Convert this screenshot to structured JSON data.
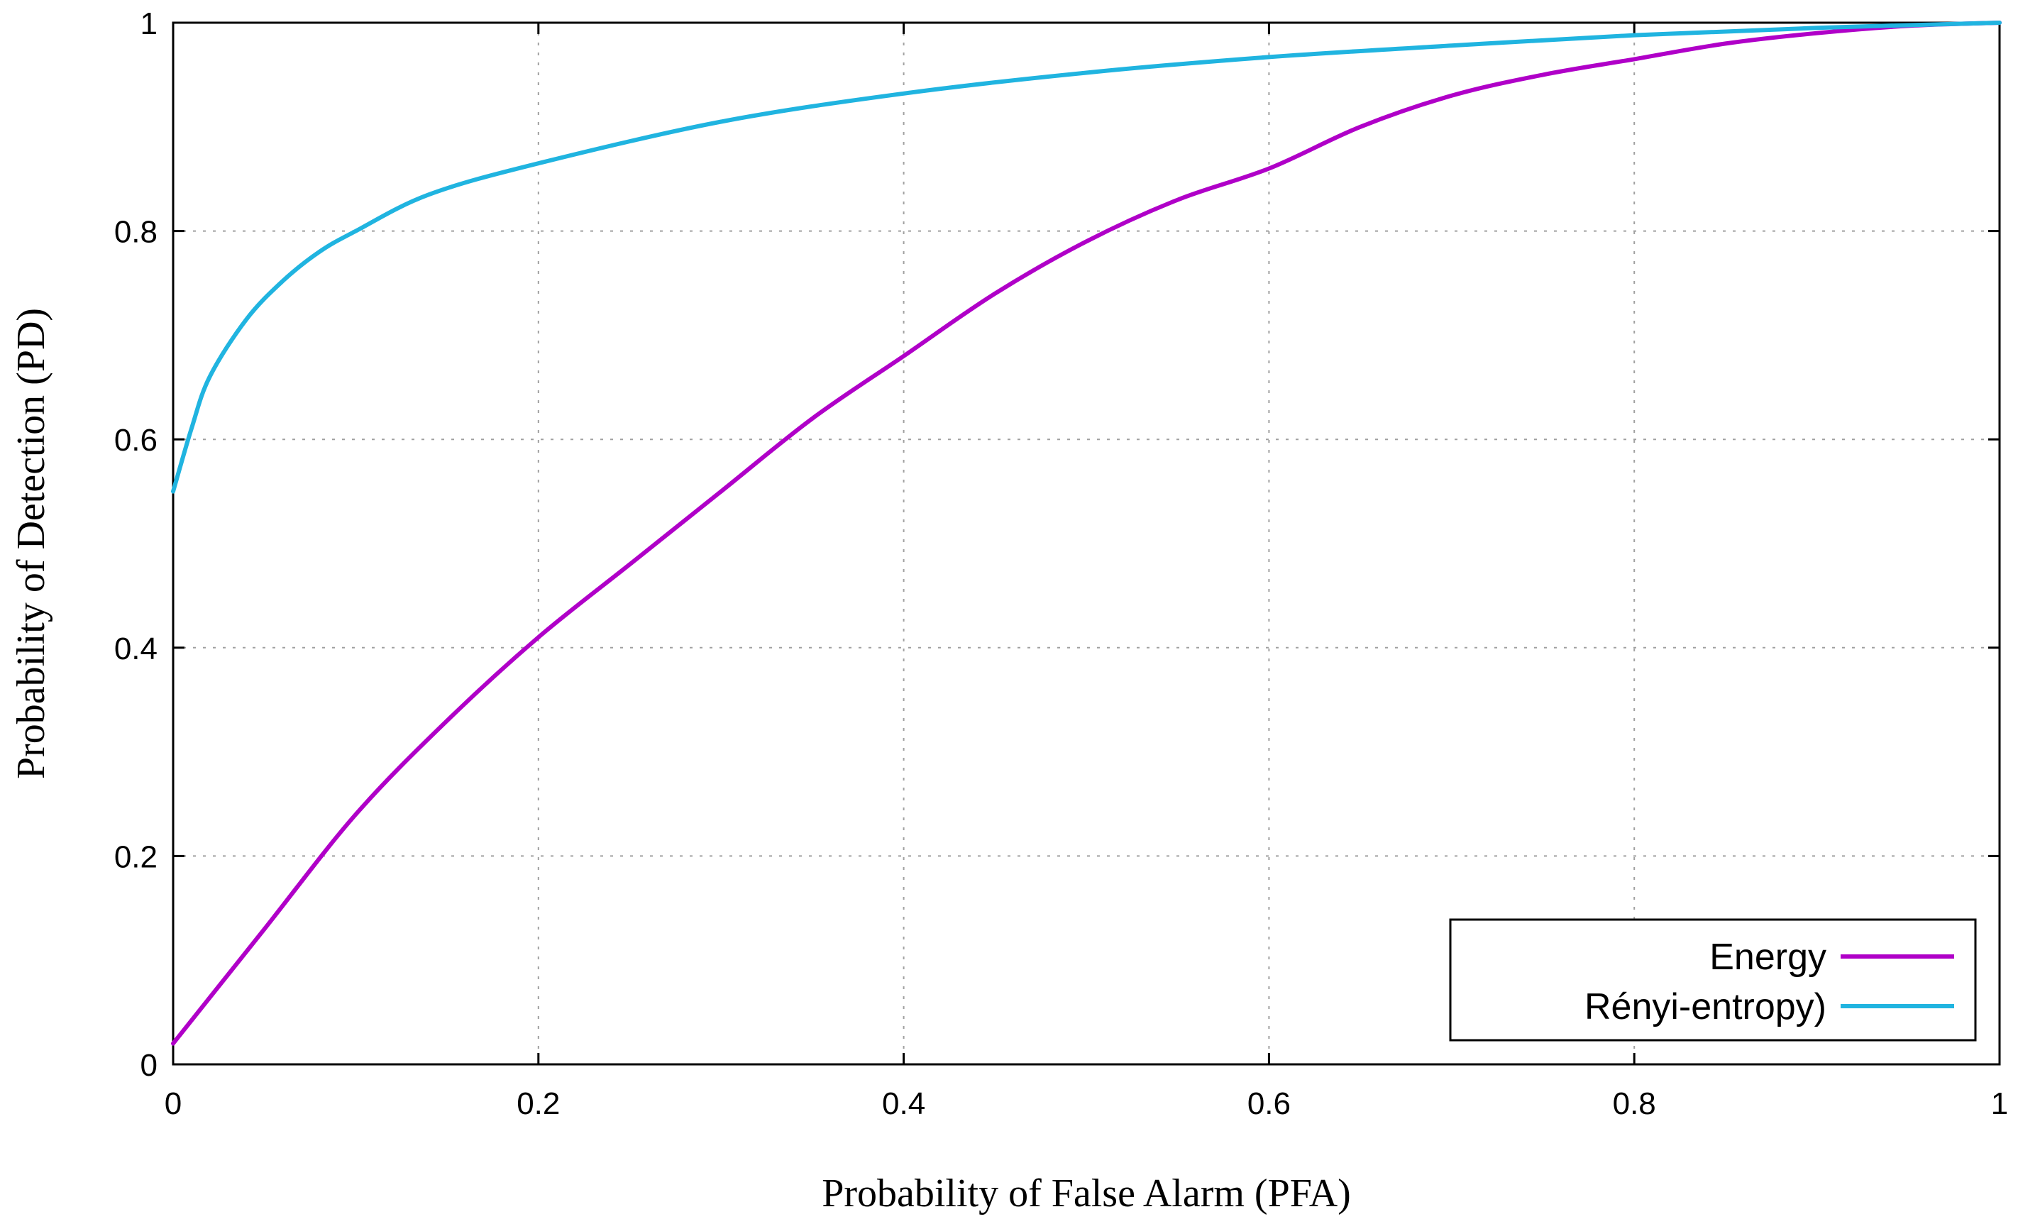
{
  "chart_data": {
    "type": "line",
    "title": "",
    "xlabel": "Probability of False Alarm (PFA)",
    "ylabel": "Probability of Detection (PD)",
    "xlim": [
      0,
      1
    ],
    "ylim": [
      0,
      1
    ],
    "grid": true,
    "legend_position": "bottom-right",
    "x_ticks": [
      {
        "value": 0,
        "label": "0"
      },
      {
        "value": 0.2,
        "label": "0.2"
      },
      {
        "value": 0.4,
        "label": "0.4"
      },
      {
        "value": 0.6,
        "label": "0.6"
      },
      {
        "value": 0.8,
        "label": "0.8"
      },
      {
        "value": 1,
        "label": "1"
      }
    ],
    "y_ticks": [
      {
        "value": 0,
        "label": "0"
      },
      {
        "value": 0.2,
        "label": "0.2"
      },
      {
        "value": 0.4,
        "label": "0.4"
      },
      {
        "value": 0.6,
        "label": "0.6"
      },
      {
        "value": 0.8,
        "label": "0.8"
      },
      {
        "value": 1,
        "label": "1"
      }
    ],
    "series": [
      {
        "name": "Energy",
        "color": "#b000c8",
        "x": [
          0,
          0.05,
          0.1,
          0.15,
          0.2,
          0.25,
          0.3,
          0.35,
          0.4,
          0.45,
          0.5,
          0.55,
          0.6,
          0.65,
          0.7,
          0.75,
          0.8,
          0.85,
          0.9,
          0.95,
          1
        ],
        "y": [
          0.02,
          0.13,
          0.24,
          0.33,
          0.41,
          0.48,
          0.55,
          0.62,
          0.68,
          0.74,
          0.79,
          0.83,
          0.86,
          0.9,
          0.93,
          0.95,
          0.965,
          0.98,
          0.99,
          0.997,
          1
        ]
      },
      {
        "name": "Rényi-entropy)",
        "color": "#20b4e0",
        "x": [
          0,
          0.01,
          0.02,
          0.04,
          0.06,
          0.08,
          0.1,
          0.14,
          0.2,
          0.3,
          0.4,
          0.5,
          0.6,
          0.7,
          0.8,
          0.9,
          1
        ],
        "y": [
          0.55,
          0.61,
          0.66,
          0.715,
          0.752,
          0.78,
          0.8,
          0.835,
          0.865,
          0.905,
          0.932,
          0.952,
          0.967,
          0.978,
          0.988,
          0.995,
          1
        ]
      }
    ]
  }
}
